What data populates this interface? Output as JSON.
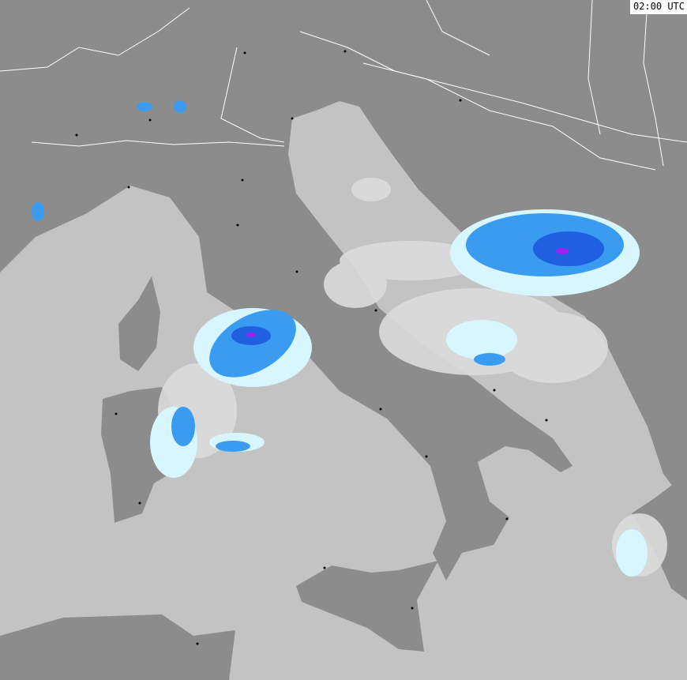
{
  "timestamp": "02:00 UTC",
  "colors": {
    "sea": "#c3c3c3",
    "land": "#8c8c8c",
    "border": "#ffffff",
    "precip_trace": "#dcdcdc",
    "precip_light": "#d8f6ff",
    "precip_cyan": "#7fe6ff",
    "precip_moderate": "#3a9cf0",
    "precip_heavy": "#1f5fe0",
    "precip_intense": "#a020f0"
  }
}
